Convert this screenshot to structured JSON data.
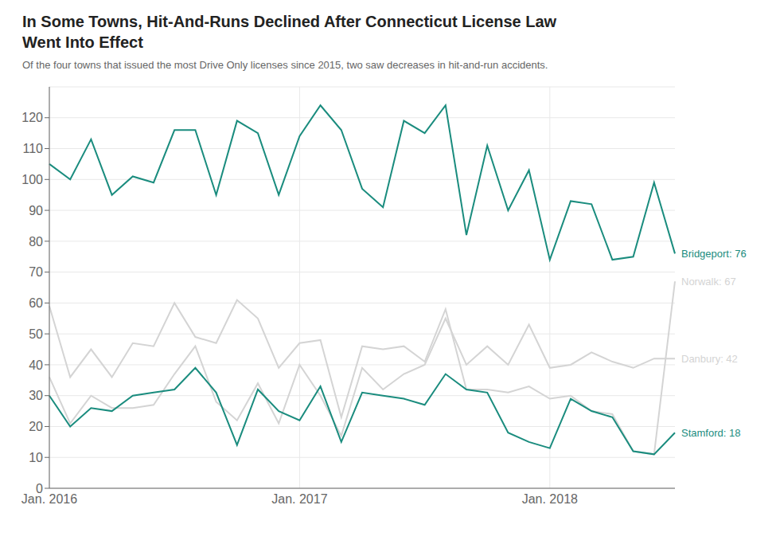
{
  "chart_data": {
    "type": "line",
    "title": "In Some Towns, Hit-And-Runs Declined After Connecticut License Law\nWent Into Effect",
    "subtitle": "Of the four towns that issued the most Drive Only licenses since 2015, two saw decreases in hit-and-run accidents.",
    "categories": [
      "Jan. 2016",
      null,
      null,
      null,
      null,
      null,
      null,
      null,
      null,
      null,
      null,
      null,
      "Jan. 2017",
      null,
      null,
      null,
      null,
      null,
      null,
      null,
      null,
      null,
      null,
      null,
      "Jan. 2018",
      null,
      null,
      null,
      null,
      null,
      null
    ],
    "series": [
      {
        "name": "Bridgeport: 76",
        "color": "#1a8c7e",
        "values": [
          105,
          100,
          113,
          95,
          101,
          99,
          116,
          116,
          95,
          119,
          115,
          95,
          114,
          124,
          116,
          97,
          91,
          119,
          115,
          124,
          82,
          111,
          90,
          103,
          74,
          93,
          92,
          74,
          75,
          99,
          76
        ]
      },
      {
        "name": "Norwalk: 67",
        "color": "#d4d4d4",
        "values": [
          59,
          36,
          45,
          36,
          47,
          46,
          60,
          49,
          47,
          61,
          55,
          39,
          47,
          48,
          23,
          46,
          45,
          46,
          41,
          58,
          32,
          32,
          31,
          33,
          29,
          30,
          25,
          24,
          12,
          11,
          67
        ]
      },
      {
        "name": "Danbury: 42",
        "color": "#d4d4d4",
        "values": [
          36,
          21,
          30,
          26,
          26,
          27,
          37,
          46,
          28,
          22,
          34,
          21,
          40,
          30,
          17,
          39,
          32,
          37,
          40,
          55,
          40,
          46,
          40,
          53,
          39,
          40,
          44,
          41,
          39,
          42,
          42
        ]
      },
      {
        "name": "Stamford: 18",
        "color": "#1a8c7e",
        "values": [
          30,
          20,
          26,
          25,
          30,
          31,
          32,
          39,
          31,
          14,
          32,
          25,
          22,
          33,
          15,
          31,
          30,
          29,
          27,
          37,
          32,
          31,
          18,
          15,
          13,
          29,
          25,
          23,
          12,
          11,
          18
        ]
      }
    ],
    "ylim": [
      0,
      130
    ],
    "yticks": [
      0,
      10,
      20,
      30,
      40,
      50,
      60,
      70,
      80,
      90,
      100,
      110,
      120
    ],
    "grid": true
  }
}
